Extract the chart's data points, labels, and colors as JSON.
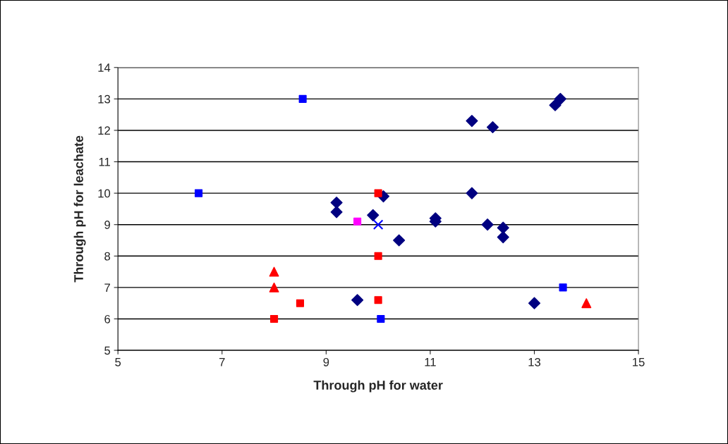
{
  "chart_data": {
    "type": "scatter",
    "xlabel": "Through pH for water",
    "ylabel": "Through pH for leachate",
    "xlim": [
      5,
      15
    ],
    "xticks": [
      5,
      7,
      9,
      11,
      13,
      15
    ],
    "ylim": [
      5,
      14
    ],
    "yticks": [
      5,
      6,
      7,
      8,
      9,
      10,
      11,
      12,
      13,
      14
    ],
    "grid": "y",
    "legend": false,
    "series": [
      {
        "color": "#000080",
        "marker": "diamond",
        "x": [
          9.2,
          9.2,
          9.9,
          10.1,
          9.6,
          10.4,
          11.1,
          11.1,
          11.8,
          12.2,
          11.8,
          12.1,
          12.4,
          12.4,
          13.0,
          13.4,
          13.5
        ],
        "values": [
          9.7,
          9.4,
          9.3,
          9.9,
          6.6,
          8.5,
          9.2,
          9.1,
          12.3,
          12.1,
          10.0,
          9.0,
          8.9,
          8.6,
          6.5,
          12.8,
          13.0
        ]
      },
      {
        "color": "#ff00ff",
        "marker": "square",
        "x": [
          9.6
        ],
        "values": [
          9.1
        ]
      },
      {
        "color": "#0000ff",
        "marker": "cross",
        "x": [
          10.0
        ],
        "values": [
          9.0
        ]
      },
      {
        "color": "#ff0000",
        "marker": "triangle",
        "x": [
          8.0,
          8.0,
          14.0
        ],
        "values": [
          7.5,
          7.0,
          6.5
        ]
      },
      {
        "color": "#ff0000",
        "marker": "square",
        "x": [
          8.0,
          8.5,
          10.0,
          10.0,
          10.0
        ],
        "values": [
          6.0,
          6.5,
          10.0,
          8.0,
          6.6
        ]
      },
      {
        "color": "#0000ff",
        "marker": "square",
        "x": [
          8.55,
          6.55,
          10.05,
          13.55
        ],
        "values": [
          13.0,
          10.0,
          6.0,
          7.0
        ]
      }
    ]
  }
}
